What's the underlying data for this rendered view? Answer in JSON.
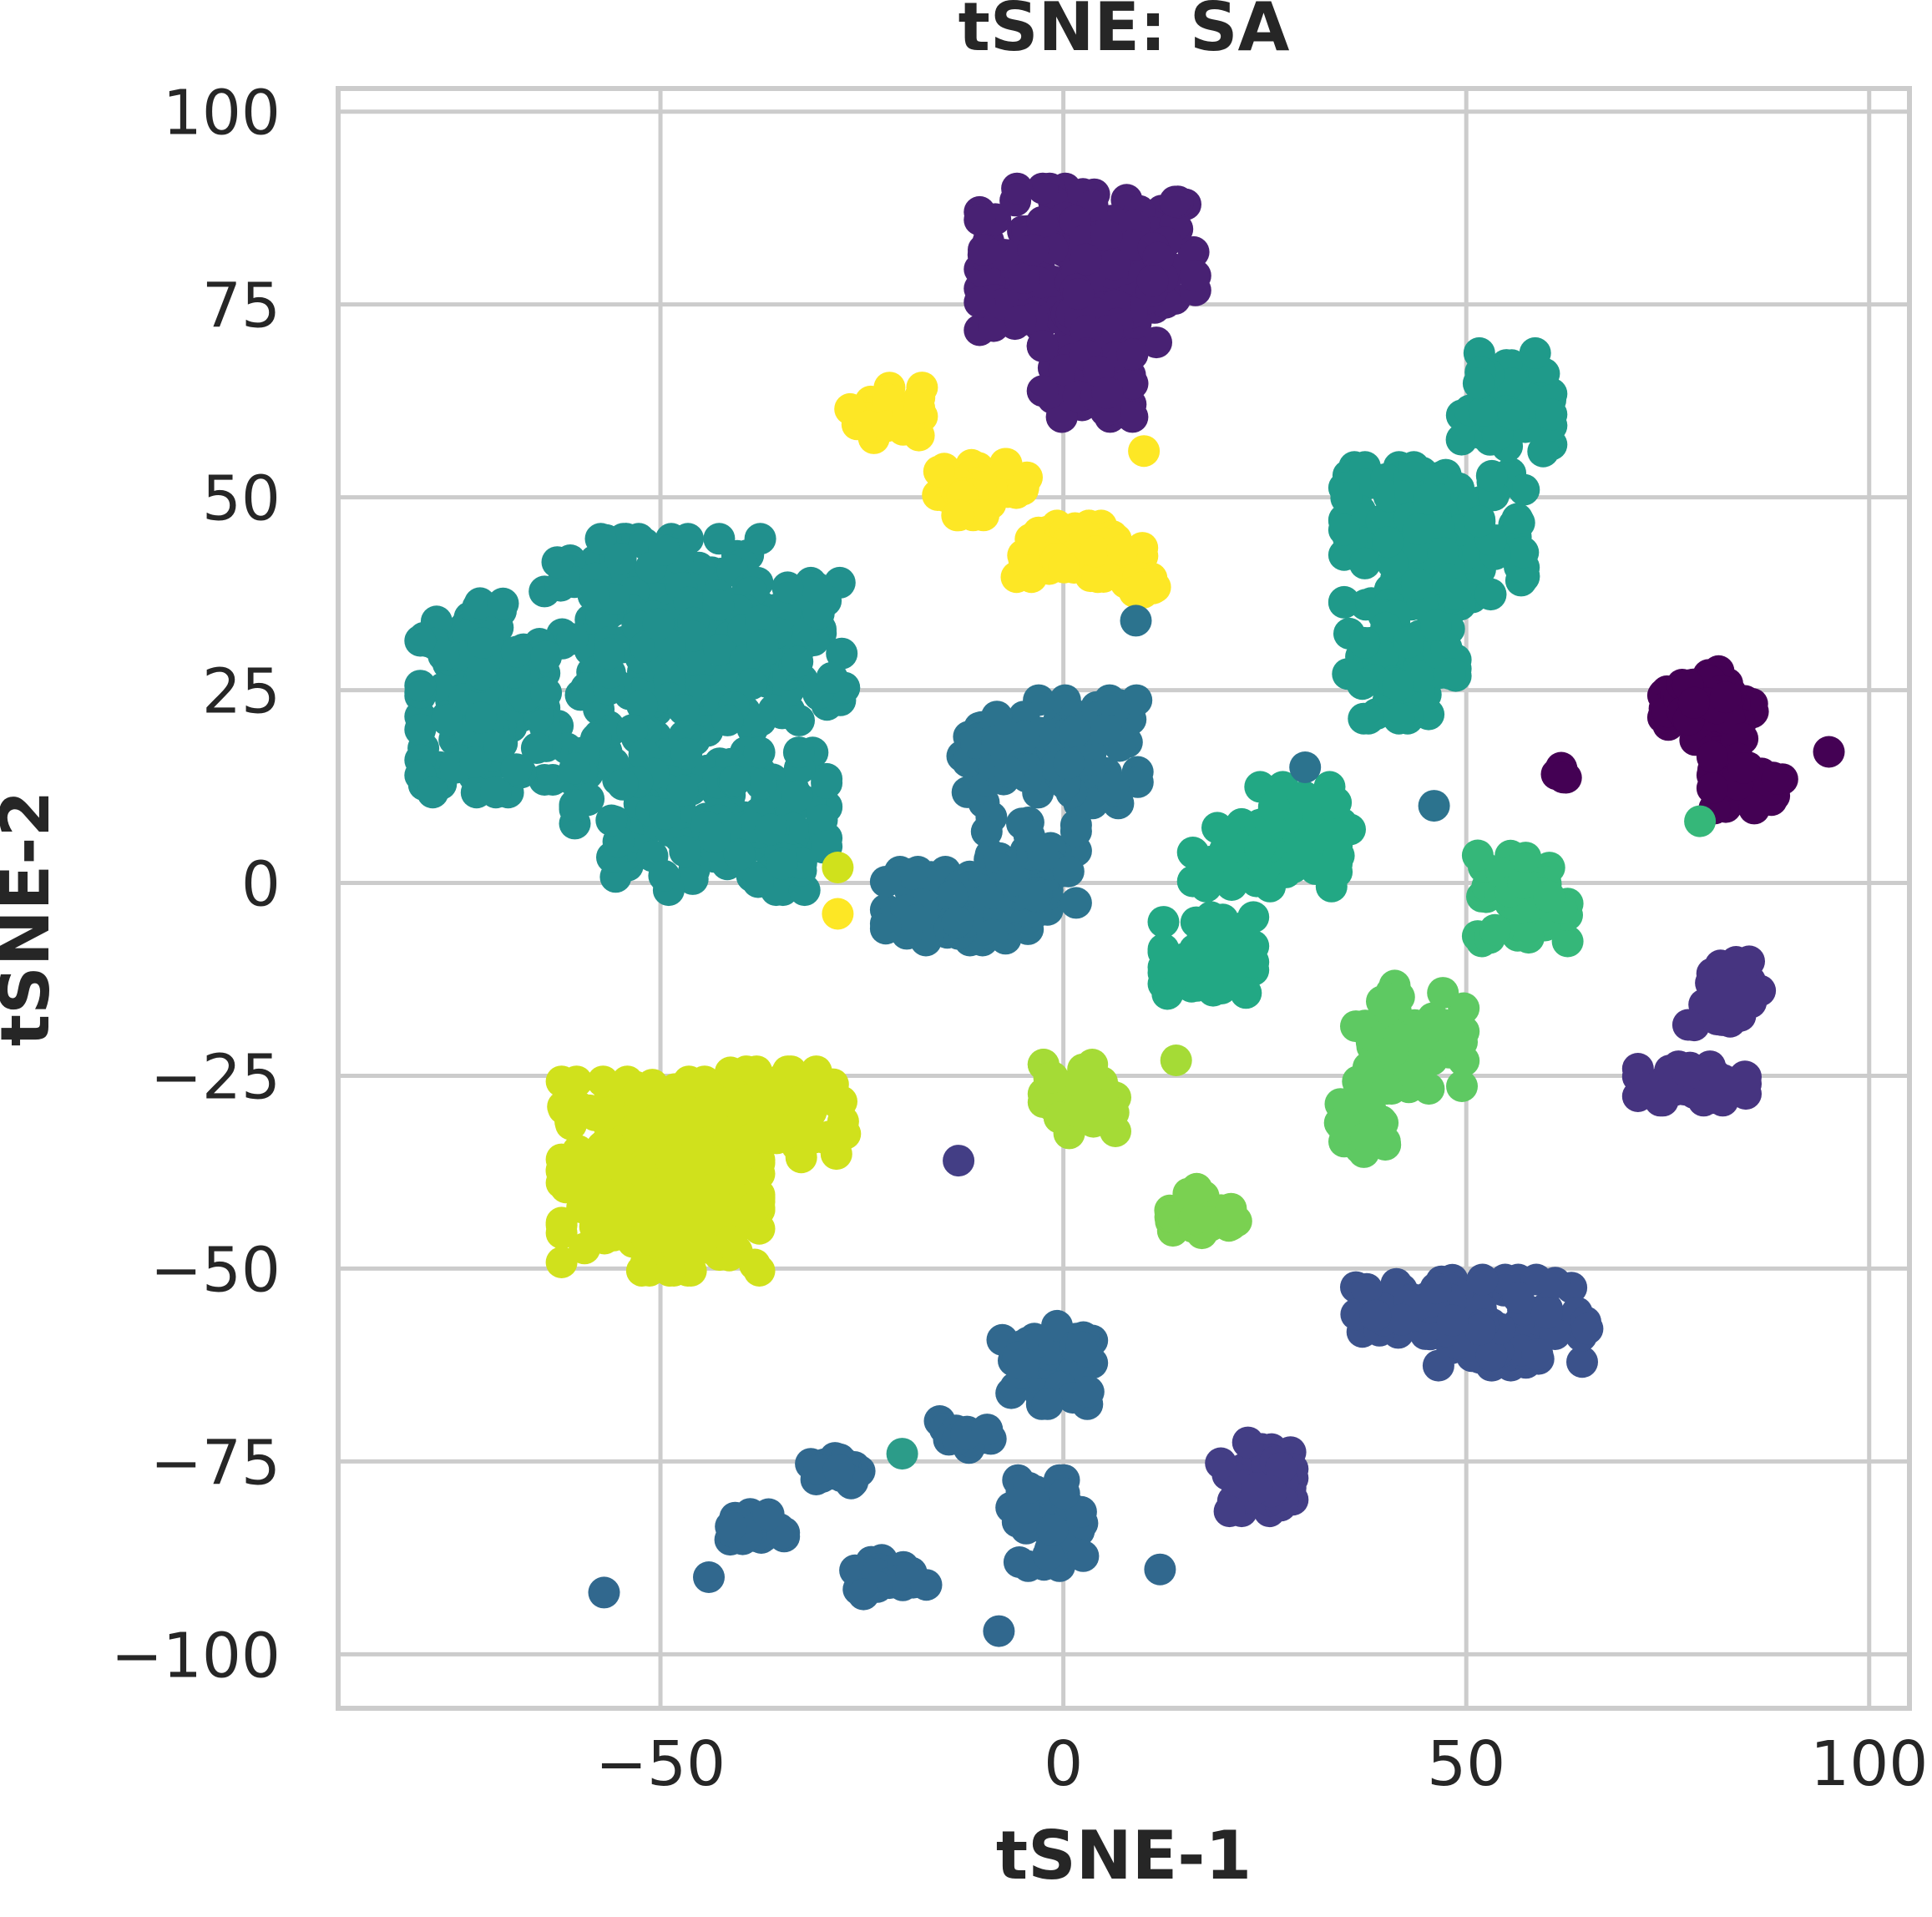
{
  "chart_data": {
    "type": "scatter",
    "title": "tSNE: SA",
    "xlabel": "tSNE-1",
    "ylabel": "tSNE-2",
    "xlim": [
      -90,
      105
    ],
    "ylim": [
      -107,
      103
    ],
    "xticks": [
      -50,
      0,
      50,
      100
    ],
    "yticks": [
      100,
      75,
      50,
      25,
      0,
      -25,
      -50,
      -75,
      -100
    ],
    "xtick_labels": [
      "−50",
      "0",
      "50",
      "100"
    ],
    "ytick_labels": [
      "100",
      "75",
      "50",
      "25",
      "0",
      "−25",
      "−50",
      "−75",
      "−100"
    ],
    "grid": true,
    "legend": false,
    "colormap": "viridis",
    "clusters": [
      {
        "color": "#482173",
        "cx": 3,
        "cy": 80,
        "sx": 12,
        "sy": 9,
        "n": 170
      },
      {
        "color": "#482173",
        "cx": 3,
        "cy": 66,
        "sx": 5,
        "sy": 5,
        "n": 50
      },
      {
        "color": "#fde725",
        "cx": -22,
        "cy": 61,
        "sx": 4,
        "sy": 3,
        "n": 30
      },
      {
        "color": "#fde725",
        "cx": -10,
        "cy": 51,
        "sx": 5,
        "sy": 3,
        "n": 40
      },
      {
        "color": "#fde725",
        "cx": 2,
        "cy": 43,
        "sx": 7,
        "sy": 3,
        "n": 60
      },
      {
        "color": "#fde725",
        "cx": 10,
        "cy": 39,
        "sx": 2,
        "sy": 2,
        "n": 15
      },
      {
        "color": "#21908d",
        "cx": -51,
        "cy": 29,
        "sx": 12,
        "sy": 14,
        "n": 220
      },
      {
        "color": "#21908d",
        "cx": -72,
        "cy": 24,
        "sx": 7,
        "sy": 11,
        "n": 140
      },
      {
        "color": "#21908d",
        "cx": -45,
        "cy": 8,
        "sx": 14,
        "sy": 8,
        "n": 140
      },
      {
        "color": "#21908d",
        "cx": -35,
        "cy": 30,
        "sx": 7,
        "sy": 8,
        "n": 90
      },
      {
        "color": "#1f9a8a",
        "cx": 46,
        "cy": 45,
        "sx": 10,
        "sy": 8,
        "n": 160
      },
      {
        "color": "#1f9a8a",
        "cx": 42,
        "cy": 28,
        "sx": 6,
        "sy": 6,
        "n": 60
      },
      {
        "color": "#1f9a8a",
        "cx": 55,
        "cy": 62,
        "sx": 5,
        "sy": 6,
        "n": 50
      },
      {
        "color": "#2c738e",
        "cx": 2,
        "cy": 17,
        "sx": 7,
        "sy": 6,
        "n": 70
      },
      {
        "color": "#2c738e",
        "cx": -9,
        "cy": 16,
        "sx": 4,
        "sy": 5,
        "n": 40
      },
      {
        "color": "#2c738e",
        "cx": -12,
        "cy": -3,
        "sx": 9,
        "sy": 4,
        "n": 90
      },
      {
        "color": "#2c738e",
        "cx": -4,
        "cy": 3,
        "sx": 5,
        "sy": 5,
        "n": 40
      },
      {
        "color": "#22a884",
        "cx": 25,
        "cy": 4,
        "sx": 8,
        "sy": 4,
        "n": 80
      },
      {
        "color": "#22a884",
        "cx": 18,
        "cy": -10,
        "sx": 5,
        "sy": 5,
        "n": 60
      },
      {
        "color": "#22a884",
        "cx": 30,
        "cy": 8,
        "sx": 5,
        "sy": 4,
        "n": 40
      },
      {
        "color": "#440154",
        "cx": 80,
        "cy": 23,
        "sx": 5,
        "sy": 4,
        "n": 80
      },
      {
        "color": "#440154",
        "cx": 85,
        "cy": 13,
        "sx": 4,
        "sy": 3,
        "n": 40
      },
      {
        "color": "#440154",
        "cx": 62,
        "cy": 14,
        "sx": 1,
        "sy": 1,
        "n": 6
      },
      {
        "color": "#35b779",
        "cx": 57,
        "cy": -2,
        "sx": 5,
        "sy": 5,
        "n": 50
      },
      {
        "color": "#5ec962",
        "cx": 43,
        "cy": -20,
        "sx": 6,
        "sy": 6,
        "n": 70
      },
      {
        "color": "#5ec962",
        "cx": 37,
        "cy": -32,
        "sx": 3,
        "sy": 3,
        "n": 25
      },
      {
        "color": "#463480",
        "cx": 82,
        "cy": -14,
        "sx": 4,
        "sy": 4,
        "n": 40
      },
      {
        "color": "#463480",
        "cx": 78,
        "cy": -26,
        "sx": 6,
        "sy": 2,
        "n": 40
      },
      {
        "color": "#d0e11c",
        "cx": -50,
        "cy": -38,
        "sx": 11,
        "sy": 11,
        "n": 250
      },
      {
        "color": "#d0e11c",
        "cx": -36,
        "cy": -30,
        "sx": 8,
        "sy": 5,
        "n": 80
      },
      {
        "color": "#a5db36",
        "cx": 2,
        "cy": -28,
        "sx": 4,
        "sy": 4,
        "n": 40
      },
      {
        "color": "#7ad151",
        "cx": 17,
        "cy": -43,
        "sx": 4,
        "sy": 3,
        "n": 30
      },
      {
        "color": "#3b528b",
        "cx": 55,
        "cy": -57,
        "sx": 9,
        "sy": 5,
        "n": 90
      },
      {
        "color": "#3b528b",
        "cx": 43,
        "cy": -55,
        "sx": 6,
        "sy": 3,
        "n": 40
      },
      {
        "color": "#433e85",
        "cx": 24,
        "cy": -77,
        "sx": 4,
        "sy": 4,
        "n": 40
      },
      {
        "color": "#31688e",
        "cx": -2,
        "cy": -62,
        "sx": 5,
        "sy": 5,
        "n": 40
      },
      {
        "color": "#31688e",
        "cx": -28,
        "cy": -76,
        "sx": 3,
        "sy": 2,
        "n": 25
      },
      {
        "color": "#31688e",
        "cx": -38,
        "cy": -84,
        "sx": 3,
        "sy": 2,
        "n": 20
      },
      {
        "color": "#31688e",
        "cx": -22,
        "cy": -90,
        "sx": 4,
        "sy": 2,
        "n": 25
      },
      {
        "color": "#31688e",
        "cx": -2,
        "cy": -83,
        "sx": 4,
        "sy": 5,
        "n": 40
      },
      {
        "color": "#31688e",
        "cx": -12,
        "cy": -72,
        "sx": 3,
        "sy": 2,
        "n": 15
      }
    ],
    "points": [
      {
        "x": 10,
        "y": 56,
        "color": "#fde725"
      },
      {
        "x": 95,
        "y": 17,
        "color": "#440154"
      },
      {
        "x": 46,
        "y": 10,
        "color": "#2c738e"
      },
      {
        "x": 30,
        "y": 15,
        "color": "#2c738e"
      },
      {
        "x": 79,
        "y": 8,
        "color": "#35b779"
      },
      {
        "x": -28,
        "y": -4,
        "color": "#fde725"
      },
      {
        "x": -28,
        "y": 2,
        "color": "#d0e11c"
      },
      {
        "x": -13,
        "y": -36,
        "color": "#433e85"
      },
      {
        "x": 14,
        "y": -23,
        "color": "#a5db36"
      },
      {
        "x": -20,
        "y": -74,
        "color": "#2c9c89"
      },
      {
        "x": -57,
        "y": -92,
        "color": "#31688e"
      },
      {
        "x": -44,
        "y": -90,
        "color": "#31688e"
      },
      {
        "x": -8,
        "y": -97,
        "color": "#31688e"
      },
      {
        "x": 12,
        "y": -89,
        "color": "#31688e"
      },
      {
        "x": -17,
        "y": -91,
        "color": "#31688e"
      },
      {
        "x": 9,
        "y": 34,
        "color": "#2c738e"
      }
    ]
  }
}
